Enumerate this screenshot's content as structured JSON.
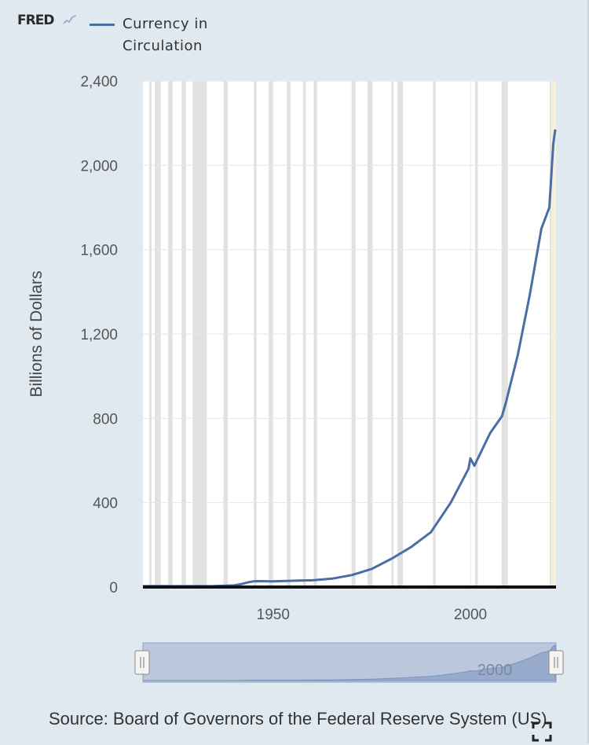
{
  "brand": {
    "logo_text": "FRED"
  },
  "legend": {
    "label": "Currency in Circulation",
    "color": "#4a6ea3"
  },
  "source_text": "Source: Board of Governors of the Federal Reserve System (US)",
  "colors": {
    "background": "#e1e9f0",
    "plot_bg": "#ffffff",
    "recession": "#e1e1e1",
    "grid": "#e6e6e6",
    "line": "#4a6ea3"
  },
  "icons": {
    "fullscreen": "fullscreen-icon",
    "logo_mark": "chart-line-icon"
  },
  "chart_data": {
    "type": "line",
    "title": "",
    "xlabel": "",
    "ylabel": "Billions of Dollars",
    "xlim": [
      1917,
      2021.7
    ],
    "ylim": [
      0,
      2400
    ],
    "x_ticks": [
      1950,
      2000
    ],
    "y_ticks": [
      0,
      400,
      800,
      1200,
      1600,
      2000,
      2400
    ],
    "y_tick_labels": [
      "0",
      "400",
      "800",
      "1,200",
      "1,600",
      "2,000",
      "2,400"
    ],
    "grid": true,
    "legend_position": "top-left",
    "series": [
      {
        "name": "Currency in Circulation",
        "x": [
          1917,
          1920,
          1925,
          1930,
          1935,
          1940,
          1942,
          1944,
          1945,
          1946,
          1950,
          1955,
          1960,
          1965,
          1970,
          1975,
          1980,
          1985,
          1990,
          1995,
          1999.5,
          2000,
          2001,
          2005,
          2008,
          2009,
          2012,
          2015,
          2018,
          2020,
          2020.5,
          2021,
          2021.5
        ],
        "values": [
          4,
          5,
          4,
          4,
          5,
          8,
          14,
          24,
          27,
          28,
          27,
          30,
          32,
          40,
          57,
          86,
          134,
          190,
          260,
          400,
          560,
          610,
          575,
          730,
          810,
          875,
          1100,
          1380,
          1700,
          1800,
          1950,
          2100,
          2170
        ]
      }
    ],
    "recessions": [
      [
        1918.6,
        1919.2
      ],
      [
        1920.0,
        1921.5
      ],
      [
        1923.4,
        1924.5
      ],
      [
        1926.8,
        1927.9
      ],
      [
        1929.6,
        1933.2
      ],
      [
        1937.4,
        1938.5
      ],
      [
        1945.1,
        1945.8
      ],
      [
        1948.9,
        1949.8
      ],
      [
        1953.5,
        1954.4
      ],
      [
        1957.6,
        1958.3
      ],
      [
        1960.3,
        1961.1
      ],
      [
        1969.9,
        1970.9
      ],
      [
        1973.9,
        1975.2
      ],
      [
        1980.0,
        1980.5
      ],
      [
        1981.5,
        1982.9
      ],
      [
        1990.5,
        1991.2
      ],
      [
        2001.2,
        2001.9
      ],
      [
        2007.9,
        2009.5
      ],
      [
        2020.1,
        2020.4
      ]
    ],
    "navigator": {
      "label": "2000",
      "selected_range": [
        1917,
        2021.7
      ]
    }
  }
}
